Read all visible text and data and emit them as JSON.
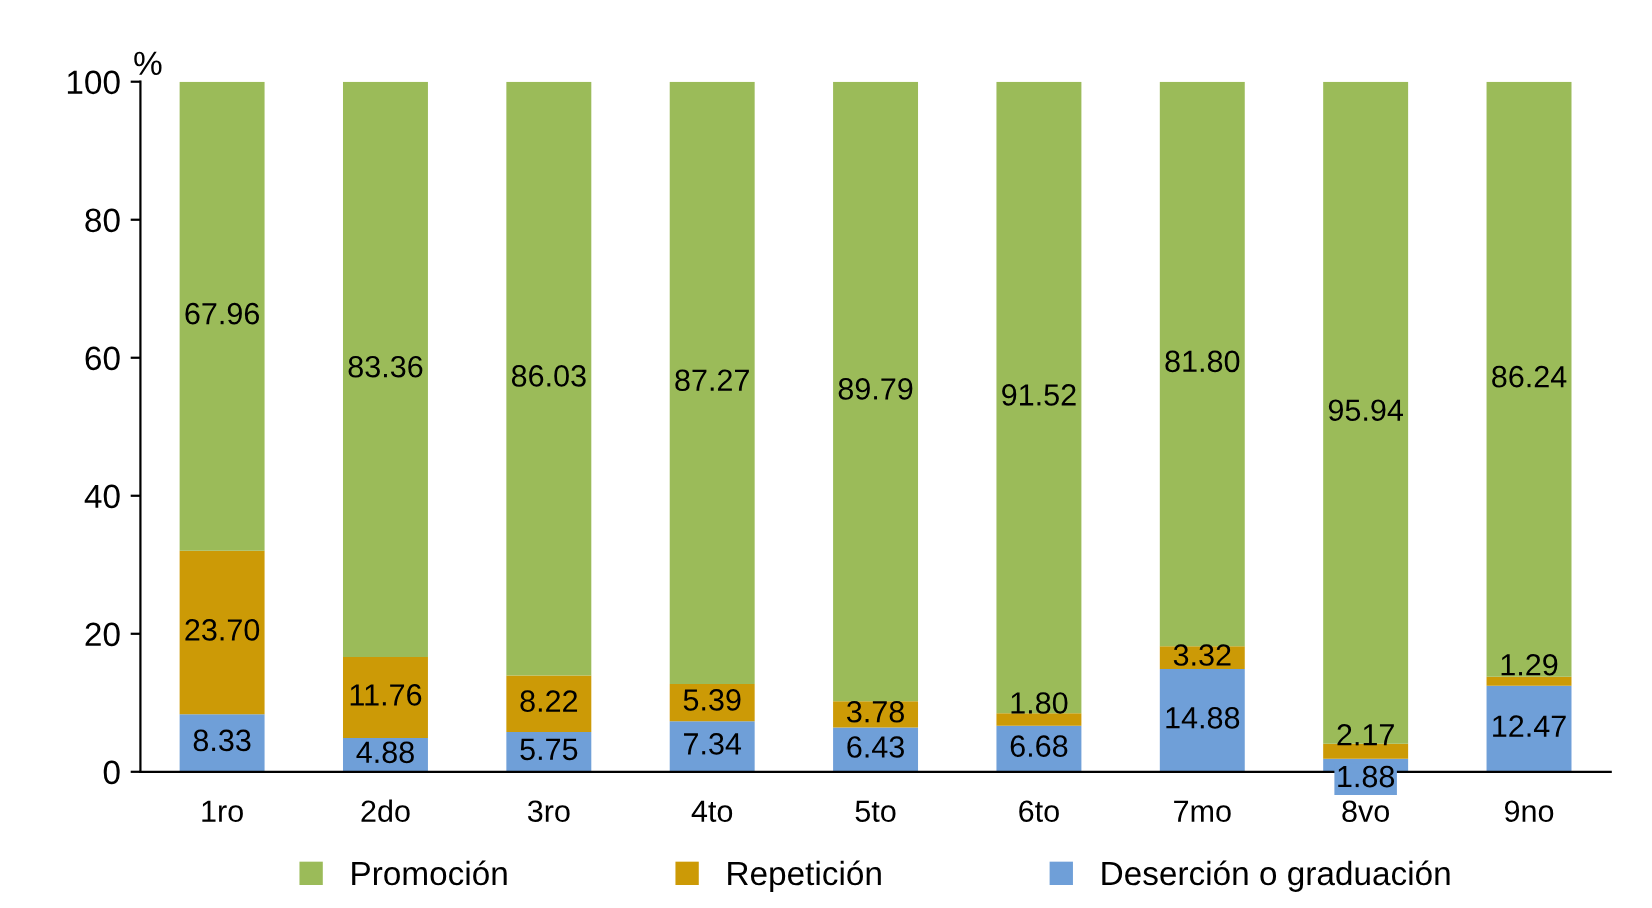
{
  "chart_data": {
    "type": "bar",
    "stacked": true,
    "ylabel": "%",
    "categories": [
      "1ro",
      "2do",
      "3ro",
      "4to",
      "5to",
      "6to",
      "7mo",
      "8vo",
      "9no"
    ],
    "series": [
      {
        "name": "Deserción o graduación",
        "color": "#6f9fd8",
        "values": [
          8.33,
          4.88,
          5.75,
          7.34,
          6.43,
          6.68,
          14.88,
          1.88,
          12.47
        ],
        "value_labels": [
          "8.33",
          "4.88",
          "5.75",
          "7.34",
          "6.43",
          "6.68",
          "14.88",
          "1.88",
          "12.47"
        ]
      },
      {
        "name": "Repetición",
        "color": "#cc9a06",
        "values": [
          23.7,
          11.76,
          8.22,
          5.39,
          3.78,
          1.8,
          3.32,
          2.17,
          1.29
        ],
        "value_labels": [
          "23.70",
          "11.76",
          "8.22",
          "5.39",
          "3.78",
          "1.80",
          "3.32",
          "2.17",
          "1.29"
        ]
      },
      {
        "name": "Promoción",
        "color": "#9bbb59",
        "values": [
          67.96,
          83.36,
          86.03,
          87.27,
          89.79,
          91.52,
          81.8,
          95.94,
          86.24
        ],
        "value_labels": [
          "67.96",
          "83.36",
          "86.03",
          "87.27",
          "89.79",
          "91.52",
          "81.80",
          "95.94",
          "86.24"
        ]
      }
    ],
    "ylim": [
      0,
      100
    ],
    "yticks": [
      0,
      20,
      40,
      60,
      80,
      100
    ],
    "grid": false,
    "legend": "bottom"
  }
}
